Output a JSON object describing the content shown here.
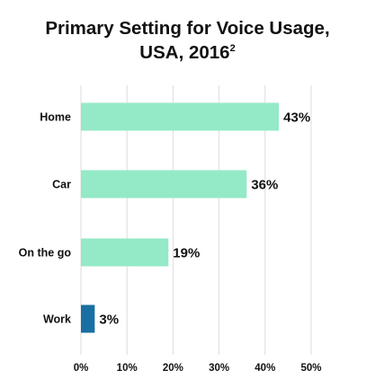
{
  "title_main": "Primary Setting for Voice Usage,",
  "title_line2": "USA, 2016",
  "title_sup": "2",
  "chart_data": {
    "type": "bar",
    "orientation": "horizontal",
    "title": "Primary Setting for Voice Usage, USA, 2016",
    "categories": [
      "Home",
      "Car",
      "On the go",
      "Work"
    ],
    "values": [
      43,
      36,
      19,
      3
    ],
    "value_labels": [
      "43%",
      "36%",
      "19%",
      "3%"
    ],
    "bar_colors": [
      "#94e9c6",
      "#94e9c6",
      "#94e9c6",
      "#1a6fa2"
    ],
    "xlim": [
      0,
      50
    ],
    "xticks": [
      0,
      10,
      20,
      30,
      40,
      50
    ],
    "xtick_labels": [
      "0%",
      "10%",
      "20%",
      "30%",
      "40%",
      "50%"
    ],
    "grid": "vertical",
    "grid_color": "#dcdcdc",
    "legend": "none"
  }
}
